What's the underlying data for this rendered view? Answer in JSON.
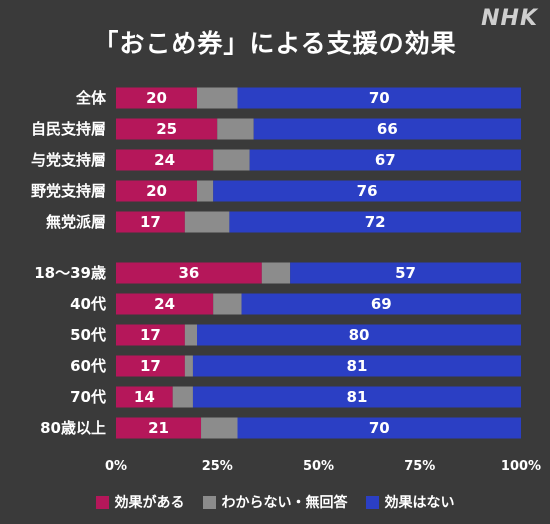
{
  "title": "「おこめ券」による支援の効果",
  "logo": "NHK",
  "colors": {
    "effective": "#b5175a",
    "unknown": "#8c8c8c",
    "not_effective": "#2b3fc4"
  },
  "chart_data": {
    "type": "bar",
    "orientation": "horizontal",
    "stacked": true,
    "categories": [
      "全体",
      "自民支持層",
      "与党支持層",
      "野党支持層",
      "無党派層",
      "18～39歳",
      "40代",
      "50代",
      "60代",
      "70代",
      "80歳以上"
    ],
    "series": [
      {
        "name": "効果がある",
        "values": [
          20,
          25,
          24,
          20,
          17,
          36,
          24,
          17,
          17,
          14,
          21
        ]
      },
      {
        "name": "わからない・無回答",
        "values": [
          10,
          9,
          9,
          4,
          11,
          7,
          7,
          3,
          2,
          5,
          9
        ]
      },
      {
        "name": "効果はない",
        "values": [
          70,
          66,
          67,
          76,
          72,
          57,
          69,
          80,
          81,
          81,
          70
        ]
      }
    ],
    "xticks": [
      "0%",
      "25%",
      "50%",
      "75%",
      "100%"
    ],
    "xlim": [
      0,
      100
    ],
    "legend_position": "bottom"
  }
}
